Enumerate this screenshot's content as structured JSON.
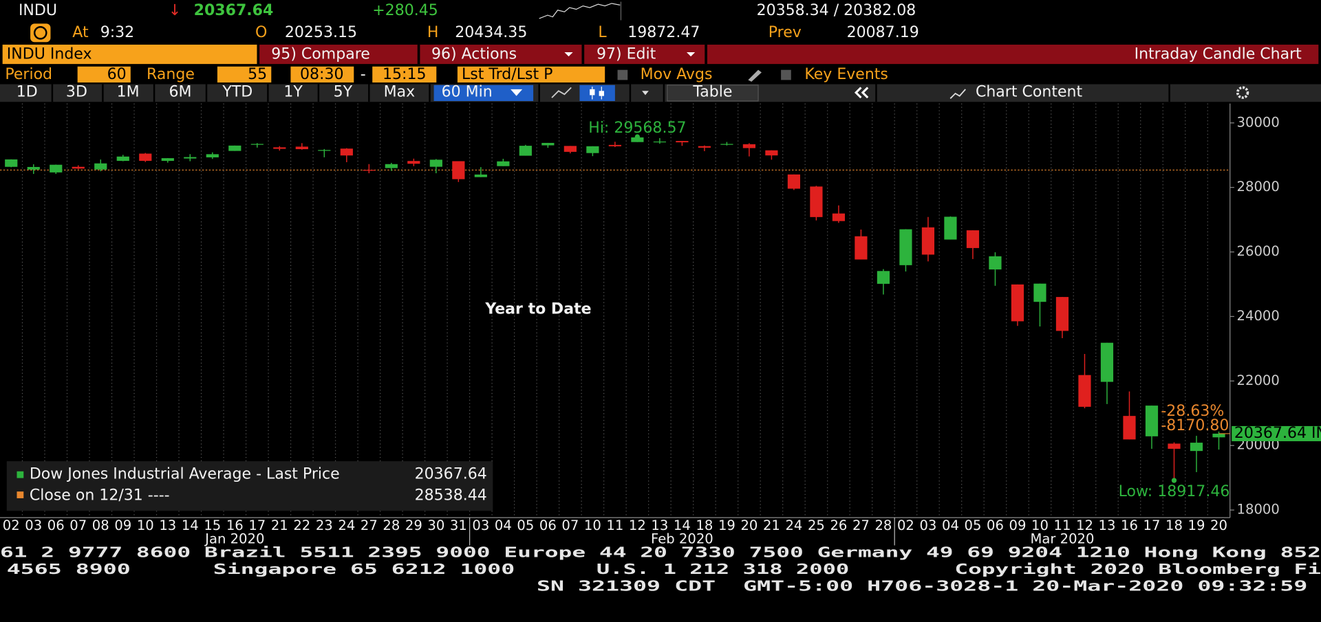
{
  "header": {
    "ticker": "INDU",
    "direction": "↓",
    "last": "20367.64",
    "change": "+280.45",
    "bid_ask": "20358.34 / 20382.08",
    "time_label": "At",
    "time": "9:32",
    "open_label": "O",
    "open": "20253.15",
    "high_label": "H",
    "high": "20434.35",
    "low_label": "L",
    "low": "19872.47",
    "prev_label": "Prev",
    "prev": "20087.19"
  },
  "toolbar": {
    "security": "INDU Index",
    "menus": [
      "95) Compare",
      "96) Actions",
      "97) Edit"
    ],
    "chart_name": "Intraday Candle Chart",
    "period_label": "Period",
    "period": "60",
    "range_label": "Range",
    "range": "55",
    "start": "08:30",
    "dash": "-",
    "end": "15:15",
    "price_field": "Lst Trd/Lst P",
    "toggles": [
      "Mov Avgs",
      "Key Events"
    ],
    "ranges": [
      "1D",
      "3D",
      "1M",
      "6M",
      "YTD",
      "1Y",
      "5Y",
      "Max"
    ],
    "interval": "60 Min",
    "table": "Table",
    "chart_content": "Chart Content"
  },
  "chart_data": {
    "type": "candlestick",
    "title": "Year to Date",
    "categories": [
      "02",
      "03",
      "06",
      "07",
      "08",
      "09",
      "10",
      "13",
      "14",
      "15",
      "16",
      "17",
      "21",
      "22",
      "23",
      "24",
      "27",
      "28",
      "29",
      "30",
      "31",
      "03",
      "04",
      "05",
      "06",
      "07",
      "10",
      "11",
      "12",
      "13",
      "14",
      "18",
      "19",
      "20",
      "21",
      "24",
      "25",
      "26",
      "27",
      "28",
      "02",
      "03",
      "04",
      "05",
      "06",
      "09",
      "10",
      "11",
      "12",
      "13",
      "16",
      "17",
      "18",
      "19",
      "20"
    ],
    "month_labels": [
      "Jan 2020",
      "Feb 2020",
      "Mar 2020"
    ],
    "series": [
      {
        "name": "Dow Jones Industrial Average - Last Price",
        "up_color": "#2db33d",
        "down_color": "#e0201e",
        "open": [
          28638,
          28553,
          28465,
          28639,
          28556,
          28823,
          29048,
          28823,
          28897,
          28932,
          29131,
          29326,
          29243,
          29264,
          29152,
          29203,
          28543,
          28600,
          28820,
          28640,
          28814,
          28319,
          28660,
          28983,
          29305,
          29286,
          29065,
          29318,
          29406,
          29410,
          29440,
          29280,
          29327,
          29340,
          29150,
          28402,
          28028,
          27192,
          26486,
          25012,
          25590,
          26762,
          26384,
          26671,
          25457,
          24992,
          24453,
          24604,
          22184,
          21973,
          20917,
          20285,
          20059,
          19830,
          20253.15
        ],
        "high": [
          28872,
          28717,
          28708,
          28686,
          28866,
          29009,
          29068,
          28908,
          29031,
          29087,
          29298,
          29374,
          29280,
          29373,
          29190,
          29218,
          28723,
          28762,
          28892,
          28879,
          28814,
          28630,
          28887,
          29320,
          29380,
          29286,
          29276,
          29415,
          29568.57,
          29530,
          29440,
          29300,
          29409,
          29371,
          29150,
          28402,
          28050,
          27443,
          26695,
          25468,
          26707,
          27084,
          27102,
          26671,
          25990,
          24992,
          25020,
          24604,
          22838,
          23185,
          21676,
          21237,
          20099,
          20300,
          20434.35
        ],
        "low": [
          28627,
          28418,
          28418,
          28565,
          28502,
          28813,
          28789,
          28768,
          28812,
          28883,
          29131,
          29234,
          29141,
          29170,
          28934,
          28782,
          28440,
          28512,
          28660,
          28440,
          28169,
          28319,
          28660,
          28983,
          29228,
          29056,
          28970,
          29250,
          29406,
          29355,
          29289,
          29125,
          29300,
          28961,
          28860,
          27921,
          26977,
          26901,
          25766,
          24681,
          25394,
          25707,
          26384,
          25780,
          24950,
          23707,
          23690,
          23328,
          21154,
          21285,
          20188,
          19898,
          18917.46,
          19175,
          19872.47
        ],
        "close": [
          28868,
          28634,
          28703,
          28583,
          28745,
          28957,
          28824,
          28907,
          28940,
          29030,
          29297,
          29348,
          29196,
          29186,
          29160,
          28990,
          28536,
          28723,
          28734,
          28859,
          28256,
          28400,
          28808,
          29291,
          29380,
          29103,
          29276,
          29276,
          29551,
          29423,
          29398,
          29232,
          29348,
          29219,
          28992,
          27961,
          27081,
          26957,
          25766,
          25409,
          26703,
          25917,
          27091,
          26121,
          25865,
          23851,
          25018,
          23553,
          21200,
          23185,
          20188,
          21237,
          19898,
          20087.19,
          20367.64
        ]
      }
    ],
    "reference": {
      "name": "Close on 12/31 ----",
      "value": 28538.44,
      "color": "#e8872e"
    },
    "last_price": {
      "value": 20367.64,
      "label": "20367.64 INDU",
      "color": "#2db33d"
    },
    "change_labels": [
      "-28.63%",
      "-8170.80"
    ],
    "annotations": [
      {
        "value": 29568.57,
        "label": "Hi: 29568.57"
      },
      {
        "value": 18917.46,
        "label": "Low: 18917.46"
      }
    ],
    "ylim": [
      17765,
      30600
    ],
    "yticks": [
      18000,
      20000,
      22000,
      24000,
      26000,
      28000,
      30000
    ],
    "grid": true
  },
  "footer": {
    "line1": "61 2 9777 8600 Brazil 5511 2395 9000 Europe 44 20 7330 7500 Germany 49 69 9204 1210 Hong Kong 852",
    "line2": [
      "4565 8900",
      "Singapore 65 6212 1000",
      "U.S. 1 212 318 2000",
      "Copyright 2020 Bloomberg Fi"
    ],
    "line3": "SN 321309 CDT  GMT-5:00 H706-3028-1 20-Mar-2020 09:32:59"
  }
}
